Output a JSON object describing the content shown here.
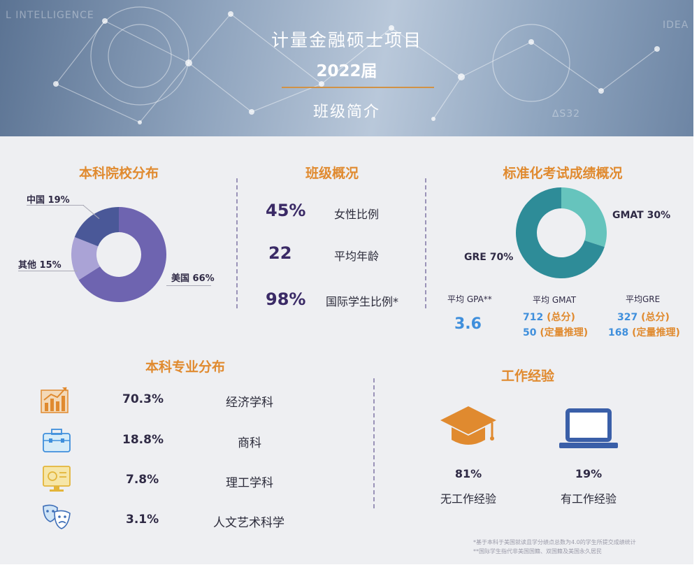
{
  "banner": {
    "title": "计量金融硕士项目",
    "year": "2022届",
    "subtitle": "班级简介",
    "watermarks": [
      "L INTELLIGENCE",
      "IDEA",
      "∆S32"
    ]
  },
  "undergrad_school": {
    "heading": "本科院校分布",
    "chart_data": {
      "type": "pie",
      "donut": true,
      "slices": [
        {
          "label": "美国",
          "value": 66,
          "color": "#6e64b0"
        },
        {
          "label": "其他",
          "value": 15,
          "color": "#aaa3d6"
        },
        {
          "label": "中国",
          "value": 19,
          "color": "#4a5898"
        }
      ]
    },
    "labels": [
      {
        "name": "中国",
        "pct": "19%"
      },
      {
        "name": "其他",
        "pct": "15%"
      },
      {
        "name": "美国",
        "pct": "66%"
      }
    ]
  },
  "class_overview": {
    "heading": "班级概况",
    "items": [
      {
        "value": "45%",
        "label": "女性比例"
      },
      {
        "value": "22",
        "label": "平均年龄"
      },
      {
        "value": "98%",
        "label": "国际学生比例*"
      }
    ]
  },
  "test_scores": {
    "heading": "标准化考试成绩概况",
    "chart_data": {
      "type": "pie",
      "donut": true,
      "slices": [
        {
          "label": "GMAT",
          "value": 30,
          "color": "#66c4bd"
        },
        {
          "label": "GRE",
          "value": 70,
          "color": "#2e8c98"
        }
      ]
    },
    "gmat_label": "GMAT 30%",
    "gre_label": "GRE 70%",
    "gpa": {
      "label": "平均 GPA**",
      "value": "3.6"
    },
    "gmat": {
      "label": "平均 GMAT",
      "total": "712",
      "total_note": "(总分)",
      "quant": "50",
      "quant_note": "(定量推理)"
    },
    "gre": {
      "label": "平均GRE",
      "total": "327",
      "total_note": "(总分)",
      "quant": "168",
      "quant_note": "(定量推理)"
    }
  },
  "majors": {
    "heading": "本科专业分布",
    "items": [
      {
        "icon": "bar-chart-icon",
        "pct": "70.3%",
        "label": "经济学科"
      },
      {
        "icon": "briefcase-icon",
        "pct": "18.8%",
        "label": "商科"
      },
      {
        "icon": "monitor-icon",
        "pct": "7.8%",
        "label": "理工学科"
      },
      {
        "icon": "theater-masks-icon",
        "pct": "3.1%",
        "label": "人文艺术科学"
      }
    ]
  },
  "work": {
    "heading": "工作经验",
    "items": [
      {
        "icon": "graduation-cap-icon",
        "pct": "81%",
        "label": "无工作经验"
      },
      {
        "icon": "laptop-icon",
        "pct": "19%",
        "label": "有工作经验"
      }
    ]
  },
  "footnotes": [
    "*基于本科于美国就读且学分绩点总数为4.0的学生所提交成绩统计",
    "**国际学生指代非美国国籍、双国籍及美国永久居民"
  ],
  "colors": {
    "orange": "#e08a2f",
    "purple_dark": "#3a2a66",
    "blue_value": "#3f8fdc"
  }
}
